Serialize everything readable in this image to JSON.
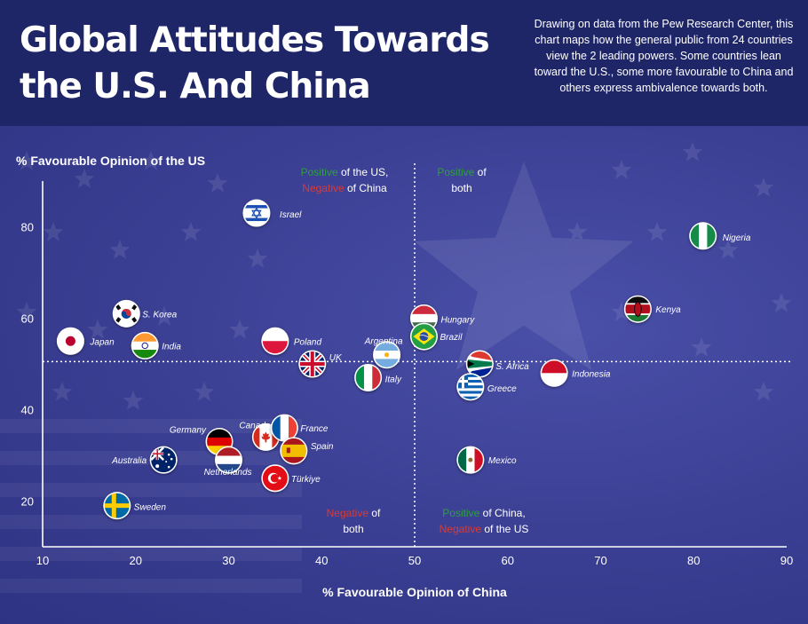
{
  "header": {
    "title": "Global Attitudes Towards the U.S. And China",
    "description": "Drawing on data from the Pew Research Center, this chart maps how the general public from 24 countries view the 2 leading powers. Some countries lean toward the U.S., some more favourable to China and others express ambivalence towards both."
  },
  "chart_data": {
    "type": "scatter",
    "title": "Global Attitudes Towards the U.S. And China",
    "xlabel": "% Favourable Opinion of China",
    "ylabel": "% Favourable Opinion of the US",
    "xlim": [
      10,
      90
    ],
    "ylim": [
      10,
      90
    ],
    "xticks": [
      10,
      20,
      30,
      40,
      50,
      60,
      70,
      80,
      90
    ],
    "yticks": [
      20,
      40,
      60,
      80
    ],
    "divider_x": 50,
    "divider_y": 50.5,
    "quadrants": [
      {
        "pos": "top-left",
        "highlight": "Positive",
        "highlight_color": "#2e9e3e",
        "rest1": " of the US,",
        "neg": "Negative",
        "neg_color": "#d93a35",
        "rest2": " of China"
      },
      {
        "pos": "top-right",
        "highlight": "Positive",
        "highlight_color": "#2e9e3e",
        "rest1": " of",
        "rest2": "both"
      },
      {
        "pos": "bottom-left",
        "highlight": "Negative",
        "highlight_color": "#d93a35",
        "rest1": " of",
        "rest2": "both"
      },
      {
        "pos": "bottom-right",
        "highlight": "Positive",
        "highlight_color": "#2e9e3e",
        "rest1": " of China,",
        "neg": "Negative",
        "neg_color": "#d93a35",
        "rest2": " of the US"
      }
    ],
    "points": [
      {
        "country": "Israel",
        "x": 33,
        "y": 83,
        "flag": "israel"
      },
      {
        "country": "Nigeria",
        "x": 81,
        "y": 78,
        "flag": "nigeria"
      },
      {
        "country": "Kenya",
        "x": 74,
        "y": 62,
        "flag": "kenya"
      },
      {
        "country": "S. Korea",
        "x": 19,
        "y": 61,
        "flag": "skorea"
      },
      {
        "country": "Hungary",
        "x": 51,
        "y": 60,
        "flag": "hungary"
      },
      {
        "country": "Japan",
        "x": 13,
        "y": 55,
        "flag": "japan"
      },
      {
        "country": "India",
        "x": 21,
        "y": 54,
        "flag": "india"
      },
      {
        "country": "Poland",
        "x": 35,
        "y": 55,
        "flag": "poland"
      },
      {
        "country": "Brazil",
        "x": 51,
        "y": 56,
        "flag": "brazil"
      },
      {
        "country": "Argentina",
        "x": 47,
        "y": 52,
        "flag": "argentina"
      },
      {
        "country": "UK",
        "x": 39,
        "y": 50,
        "flag": "uk"
      },
      {
        "country": "S. Africa",
        "x": 57,
        "y": 50,
        "flag": "safrica"
      },
      {
        "country": "Indonesia",
        "x": 65,
        "y": 48,
        "flag": "indonesia"
      },
      {
        "country": "Italy",
        "x": 45,
        "y": 47,
        "flag": "italy"
      },
      {
        "country": "Greece",
        "x": 56,
        "y": 45,
        "flag": "greece"
      },
      {
        "country": "Canada",
        "x": 34,
        "y": 34,
        "flag": "canada"
      },
      {
        "country": "France",
        "x": 36,
        "y": 36,
        "flag": "france"
      },
      {
        "country": "Germany",
        "x": 29,
        "y": 33,
        "flag": "germany"
      },
      {
        "country": "Spain",
        "x": 37,
        "y": 31,
        "flag": "spain"
      },
      {
        "country": "Australia",
        "x": 23,
        "y": 29,
        "flag": "australia"
      },
      {
        "country": "Netherlands",
        "x": 30,
        "y": 29,
        "flag": "netherlands"
      },
      {
        "country": "Mexico",
        "x": 56,
        "y": 29,
        "flag": "mexico"
      },
      {
        "country": "Türkiye",
        "x": 35,
        "y": 25,
        "flag": "turkiye"
      },
      {
        "country": "Sweden",
        "x": 18,
        "y": 19,
        "flag": "sweden"
      }
    ]
  }
}
